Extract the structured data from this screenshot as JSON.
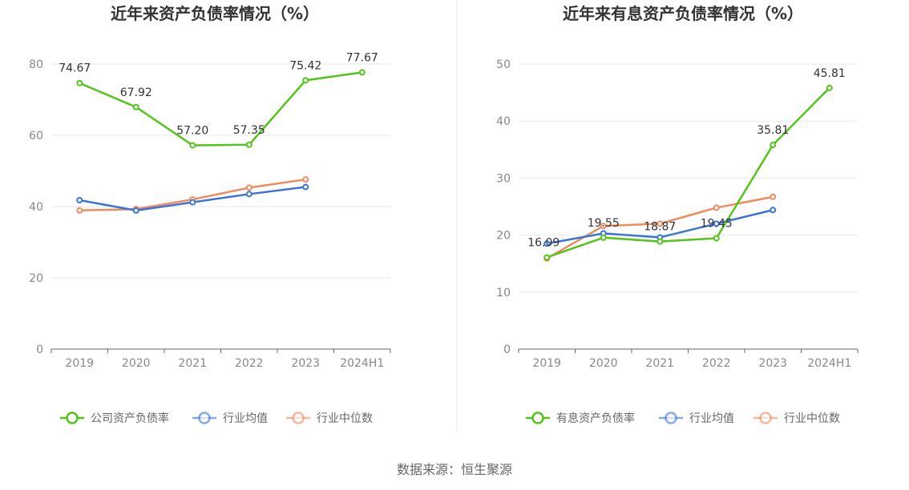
{
  "chart_data": [
    {
      "type": "line",
      "title": "近年来资产负债率情况（%）",
      "categories": [
        "2019",
        "2020",
        "2021",
        "2022",
        "2023",
        "2024H1"
      ],
      "ylim": [
        0,
        80
      ],
      "yticks": [
        0,
        20,
        40,
        60,
        80
      ],
      "grid": true,
      "legend_position": "bottom",
      "series": [
        {
          "name": "公司资产负债率",
          "color": "#52c41a",
          "values": [
            74.67,
            67.92,
            57.2,
            57.35,
            75.42,
            77.67
          ],
          "labeled": true
        },
        {
          "name": "行业均值",
          "color": "#3a75d6",
          "values": [
            41.8,
            38.9,
            41.2,
            43.5,
            45.5,
            null
          ],
          "labeled": false
        },
        {
          "name": "行业中位数",
          "color": "#f08a5d",
          "values": [
            38.9,
            39.3,
            42.0,
            45.3,
            47.6,
            null
          ],
          "labeled": false
        }
      ],
      "data_labels": [
        "74.67",
        "67.92",
        "57.20",
        "57.35",
        "75.42",
        "77.67"
      ]
    },
    {
      "type": "line",
      "title": "近年来有息资产负债率情况（%）",
      "categories": [
        "2019",
        "2020",
        "2021",
        "2022",
        "2023",
        "2024H1"
      ],
      "ylim": [
        0,
        50
      ],
      "yticks": [
        0,
        10,
        20,
        30,
        40,
        50
      ],
      "grid": true,
      "legend_position": "bottom",
      "series": [
        {
          "name": "有息资产负债率",
          "color": "#52c41a",
          "values": [
            16.09,
            19.55,
            18.87,
            19.45,
            35.81,
            45.81
          ],
          "labeled": true
        },
        {
          "name": "行业均值",
          "color": "#3a75d6",
          "values": [
            18.5,
            20.3,
            19.6,
            22.0,
            24.4,
            null
          ],
          "labeled": false
        },
        {
          "name": "行业中位数",
          "color": "#f08a5d",
          "values": [
            15.9,
            21.6,
            22.0,
            24.8,
            26.7,
            null
          ],
          "labeled": false
        }
      ],
      "data_labels": [
        "16.09",
        "19.55",
        "18.87",
        "19.45",
        "35.81",
        "45.81"
      ]
    }
  ],
  "footer": {
    "source": "数据来源：恒生聚源"
  }
}
